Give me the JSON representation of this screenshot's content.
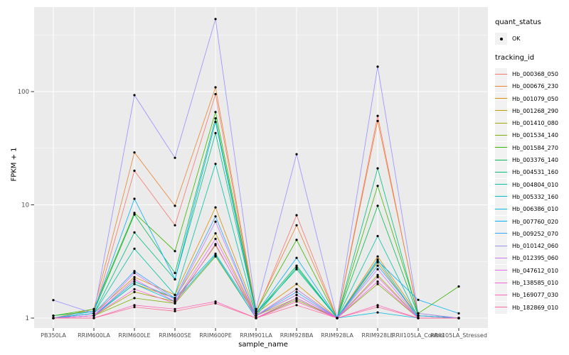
{
  "chart_data": {
    "type": "line",
    "title": "",
    "xlabel": "sample_name",
    "ylabel": "FPKM + 1",
    "y_scale": "log10",
    "y_ticks": [
      1,
      10,
      100
    ],
    "ylim": [
      0.85,
      520
    ],
    "grid": true,
    "legend_position": "right",
    "panel_bg": "#EBEBEB",
    "grid_color": "#FFFFFF",
    "point_color": "#000000",
    "tick_text_color": "#4D4D4D",
    "categories": [
      "PB350LA",
      "RRIM600LA",
      "RRIM600LE",
      "RRIM600SE",
      "RRIM600PE",
      "RRIM901LA",
      "RRIM928BA",
      "RRIM928LA",
      "RRIM928LE",
      "RRII105LA_Control",
      "RRII105LA_Stressed"
    ],
    "series": [
      {
        "name": "Hb_000368_050",
        "color": "#F8766D",
        "values": [
          1.0,
          1.1,
          20,
          6.6,
          95,
          1.1,
          8.1,
          1.0,
          61,
          1.05,
          1.0
        ]
      },
      {
        "name": "Hb_000676_230",
        "color": "#EA8331",
        "values": [
          1.0,
          1.2,
          29,
          9.8,
          109,
          1.15,
          6.6,
          1.0,
          55,
          1.1,
          1.0
        ]
      },
      {
        "name": "Hb_001079_050",
        "color": "#D89000",
        "values": [
          1.0,
          1.1,
          2.3,
          1.6,
          9.5,
          1.1,
          2.0,
          1.0,
          3.5,
          1.05,
          1.0
        ]
      },
      {
        "name": "Hb_001268_290",
        "color": "#C09B00",
        "values": [
          1.0,
          1.05,
          2.0,
          1.5,
          5.6,
          1.05,
          1.8,
          1.0,
          3.1,
          1.0,
          1.0
        ]
      },
      {
        "name": "Hb_001410_080",
        "color": "#A3A500",
        "values": [
          1.0,
          1.05,
          1.7,
          1.4,
          4.4,
          1.05,
          1.5,
          1.0,
          2.4,
          1.0,
          1.0
        ]
      },
      {
        "name": "Hb_001534_140",
        "color": "#7CAE00",
        "values": [
          1.0,
          1.05,
          1.5,
          1.35,
          3.5,
          1.0,
          1.45,
          1.0,
          2.0,
          1.0,
          1.0
        ]
      },
      {
        "name": "Hb_001584_270",
        "color": "#39B600",
        "values": [
          1.05,
          1.2,
          8.5,
          3.9,
          66,
          1.15,
          4.9,
          1.0,
          14.7,
          1.1,
          1.9
        ]
      },
      {
        "name": "Hb_003376_140",
        "color": "#00BB4E",
        "values": [
          1.05,
          1.15,
          8.2,
          2.5,
          58,
          1.1,
          2.9,
          1.0,
          9.8,
          1.05,
          1.0
        ]
      },
      {
        "name": "Hb_004531_160",
        "color": "#00BF7D",
        "values": [
          1.0,
          1.1,
          5.7,
          2.2,
          43,
          1.1,
          2.7,
          1.0,
          21,
          1.05,
          1.0
        ]
      },
      {
        "name": "Hb_004804_010",
        "color": "#00C1A3",
        "values": [
          1.0,
          1.1,
          4.1,
          1.6,
          23,
          1.05,
          2.8,
          1.0,
          5.3,
          1.0,
          1.0
        ]
      },
      {
        "name": "Hb_005332_160",
        "color": "#00BFC4",
        "values": [
          1.0,
          1.05,
          2.1,
          1.5,
          3.7,
          1.05,
          1.6,
          1.0,
          3.3,
          1.0,
          1.0
        ]
      },
      {
        "name": "Hb_006386_010",
        "color": "#00BAE0",
        "values": [
          1.0,
          1.05,
          2.0,
          1.4,
          3.6,
          1.0,
          1.5,
          1.0,
          1.12,
          1.0,
          1.0
        ]
      },
      {
        "name": "Hb_007760_020",
        "color": "#00B0F6",
        "values": [
          1.0,
          1.15,
          11.3,
          2.2,
          54,
          1.1,
          3.4,
          1.0,
          3.2,
          1.45,
          1.1
        ]
      },
      {
        "name": "Hb_009252_070",
        "color": "#35A2FF",
        "values": [
          1.0,
          1.1,
          2.6,
          1.5,
          7.9,
          1.05,
          1.7,
          1.0,
          2.9,
          1.05,
          1.0
        ]
      },
      {
        "name": "Hb_010142_060",
        "color": "#9590FF",
        "values": [
          1.44,
          1.1,
          93,
          26,
          437,
          1.2,
          28,
          1.0,
          166,
          1.1,
          1.0
        ]
      },
      {
        "name": "Hb_012395_060",
        "color": "#C77CFF",
        "values": [
          1.0,
          1.05,
          2.5,
          1.45,
          7.1,
          1.05,
          1.8,
          1.0,
          2.7,
          1.0,
          1.0
        ]
      },
      {
        "name": "Hb_047612_010",
        "color": "#E76BF3",
        "values": [
          1.0,
          1.05,
          2.2,
          1.4,
          5.0,
          1.05,
          1.6,
          1.0,
          2.3,
          1.0,
          1.0
        ]
      },
      {
        "name": "Hb_138585_010",
        "color": "#FA62DB",
        "values": [
          1.0,
          1.05,
          1.8,
          1.35,
          4.5,
          1.0,
          1.5,
          1.0,
          2.1,
          1.0,
          1.0
        ]
      },
      {
        "name": "Hb_169077_030",
        "color": "#FF62BC",
        "values": [
          1.0,
          1.0,
          1.3,
          1.2,
          1.4,
          1.0,
          1.4,
          1.0,
          1.3,
          1.0,
          1.0
        ]
      },
      {
        "name": "Hb_182869_010",
        "color": "#FF6A98",
        "values": [
          1.0,
          1.0,
          1.25,
          1.15,
          1.35,
          1.0,
          1.3,
          1.0,
          1.25,
          1.0,
          1.0
        ]
      }
    ]
  },
  "legend": {
    "quant_status_title": "quant_status",
    "ok_label": "OK",
    "tracking_id_title": "tracking_id"
  }
}
